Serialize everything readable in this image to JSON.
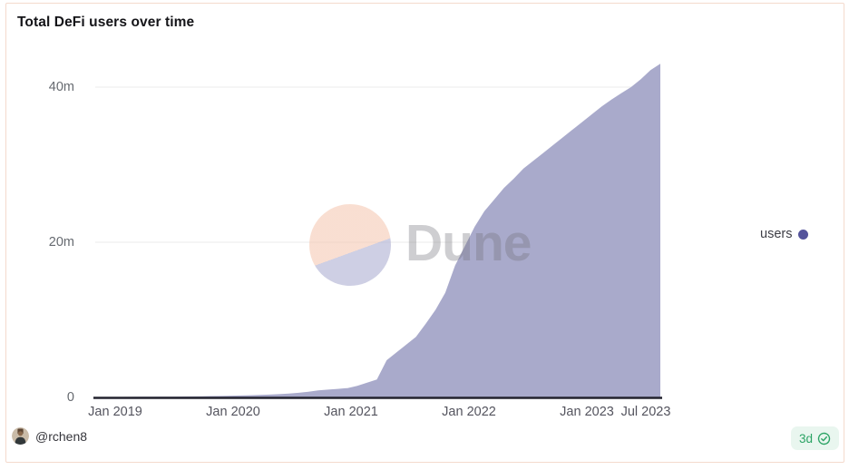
{
  "card": {
    "title": "Total DeFi users over time",
    "watermark_text": "Dune",
    "legend": {
      "label": "users",
      "color": "#54539b"
    },
    "footer": {
      "author": "@rchen8",
      "badge_age": "3d"
    }
  },
  "colors": {
    "area_fill": "#a9aacb",
    "legend_dot": "#54539b",
    "axis_line": "#23232e",
    "gridline": "#ebebeb",
    "badge_bg": "#e9f6ef",
    "badge_green": "#2ca465",
    "card_border": "#f4dacd",
    "watermark_peach": "#f4c4ac",
    "watermark_lavender": "#a6a8cd"
  },
  "chart_data": {
    "type": "area",
    "title": "Total DeFi users over time",
    "x_unit": "month",
    "grid": "horizontal",
    "legend_position": "right",
    "ylim_millions": [
      0,
      44
    ],
    "y_ticks": [
      "0",
      "20m",
      "40m"
    ],
    "x_ticks": [
      "Jan 2019",
      "Jan 2020",
      "Jan 2021",
      "Jan 2022",
      "Jan 2023",
      "Jul 2023"
    ],
    "x": [
      "2018-11",
      "2018-12",
      "2019-01",
      "2019-02",
      "2019-03",
      "2019-04",
      "2019-05",
      "2019-06",
      "2019-07",
      "2019-08",
      "2019-09",
      "2019-10",
      "2019-11",
      "2019-12",
      "2020-01",
      "2020-02",
      "2020-03",
      "2020-04",
      "2020-05",
      "2020-06",
      "2020-07",
      "2020-08",
      "2020-09",
      "2020-10",
      "2020-11",
      "2020-12",
      "2021-01",
      "2021-02",
      "2021-03",
      "2021-04",
      "2021-05",
      "2021-06",
      "2021-07",
      "2021-08",
      "2021-09",
      "2021-10",
      "2021-11",
      "2021-12",
      "2022-01",
      "2022-02",
      "2022-03",
      "2022-04",
      "2022-05",
      "2022-06",
      "2022-07",
      "2022-08",
      "2022-09",
      "2022-10",
      "2022-11",
      "2022-12",
      "2023-01",
      "2023-02",
      "2023-03",
      "2023-04",
      "2023-05",
      "2023-06",
      "2023-07",
      "2023-08",
      "2023-09"
    ],
    "series": [
      {
        "name": "users",
        "color": "#a9aacb",
        "unit": "millions_of_users",
        "values": [
          0.02,
          0.03,
          0.05,
          0.06,
          0.07,
          0.08,
          0.09,
          0.1,
          0.11,
          0.12,
          0.13,
          0.15,
          0.17,
          0.19,
          0.22,
          0.25,
          0.28,
          0.32,
          0.36,
          0.42,
          0.5,
          0.6,
          0.72,
          0.9,
          1.0,
          1.1,
          1.2,
          1.5,
          1.9,
          2.3,
          4.8,
          5.8,
          6.8,
          7.8,
          9.5,
          11.3,
          13.5,
          17.0,
          19.5,
          22.0,
          24.0,
          25.5,
          27.0,
          28.2,
          29.5,
          30.5,
          31.5,
          32.5,
          33.5,
          34.5,
          35.5,
          36.5,
          37.5,
          38.4,
          39.2,
          40.0,
          41.0,
          42.2,
          43.0
        ]
      }
    ]
  }
}
